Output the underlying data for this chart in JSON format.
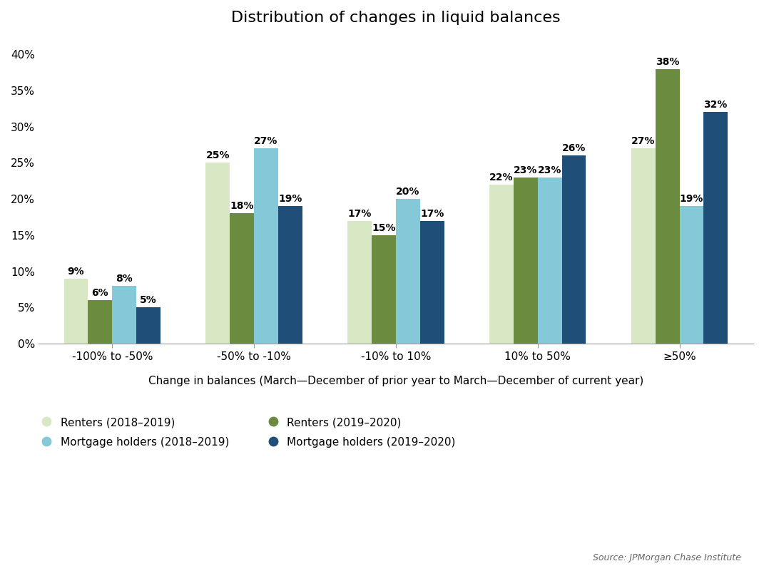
{
  "title": "Distribution of changes in liquid balances",
  "xlabel": "Change in balances (March—December of prior year to March—December of current year)",
  "categories": [
    "-100% to -50%",
    "-50% to -10%",
    "-10% to 10%",
    "10% to 50%",
    "≥50%"
  ],
  "series": {
    "Renters (2018–2019)": [
      9,
      25,
      17,
      22,
      27
    ],
    "Renters (2019–2020)": [
      6,
      18,
      15,
      23,
      38
    ],
    "Mortgage holders (2018–2019)": [
      8,
      27,
      20,
      23,
      19
    ],
    "Mortgage holders (2019–2020)": [
      5,
      19,
      17,
      26,
      32
    ]
  },
  "colors": {
    "Renters (2018–2019)": "#d9e8c4",
    "Renters (2019–2020)": "#6b8c3e",
    "Mortgage holders (2018–2019)": "#85c8d8",
    "Mortgage holders (2019–2020)": "#1f4e79"
  },
  "ylim": [
    0,
    42
  ],
  "yticks": [
    0,
    5,
    10,
    15,
    20,
    25,
    30,
    35,
    40
  ],
  "bar_width": 0.17,
  "source_text": "Source: JPMorgan Chase Institute",
  "title_fontsize": 16,
  "label_fontsize": 11,
  "tick_fontsize": 11,
  "source_fontsize": 9,
  "legend_fontsize": 11,
  "value_fontsize": 10
}
